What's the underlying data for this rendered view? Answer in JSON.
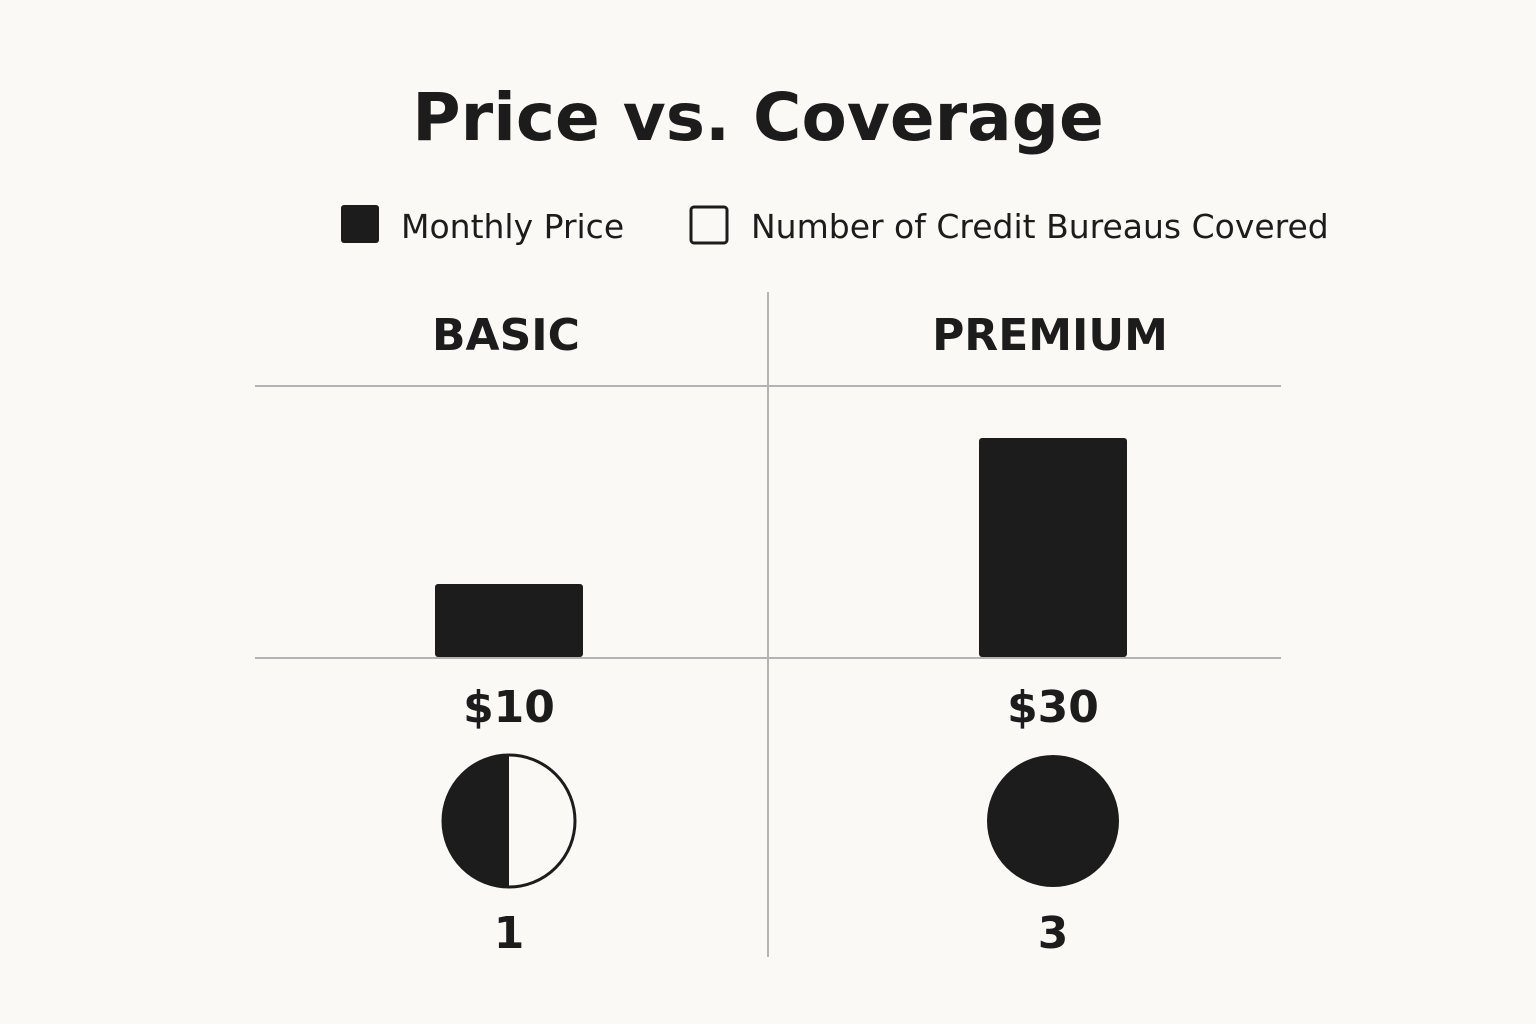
{
  "colors": {
    "background": "#faf9f5",
    "ink": "#1c1c1c",
    "grid": "#b3b3b3"
  },
  "chart_data": {
    "type": "bar",
    "title": "Price vs. Coverage",
    "legend": {
      "placement": "top",
      "items": [
        {
          "label": "Monthly Price",
          "marker": "filled-square"
        },
        {
          "label": "Number of Credit Bureaus Covered",
          "marker": "outlined-square"
        }
      ]
    },
    "categories": [
      "BASIC",
      "PREMIUM"
    ],
    "series": [
      {
        "name": "Monthly Price",
        "values": [
          10,
          30
        ],
        "labels": [
          "$10",
          "$30"
        ]
      },
      {
        "name": "Number of Credit Bureaus Covered",
        "values": [
          1,
          3
        ],
        "labels": [
          "1",
          "3"
        ],
        "display": "circle-fill"
      }
    ],
    "grid": true
  }
}
